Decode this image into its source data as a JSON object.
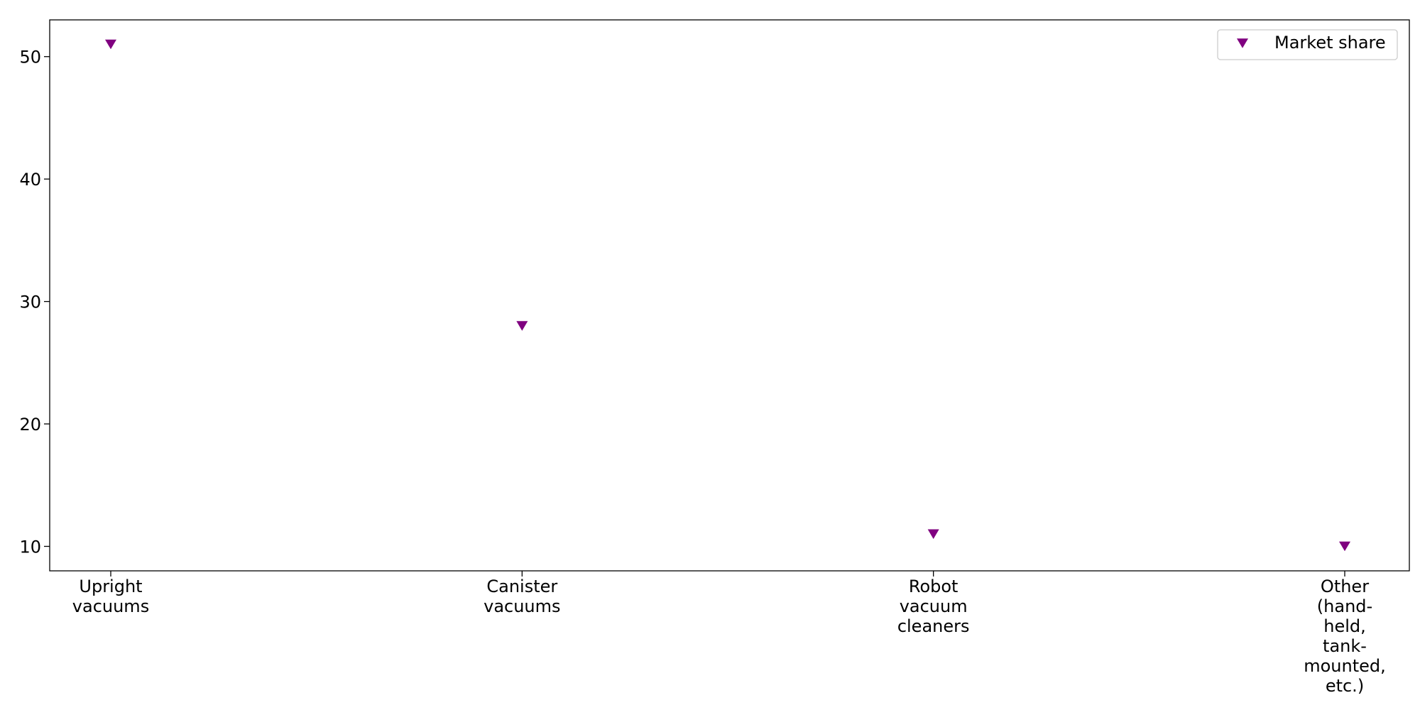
{
  "chart_data": {
    "type": "scatter",
    "categories": [
      [
        "Upright",
        "vacuums"
      ],
      [
        "Canister",
        "vacuums"
      ],
      [
        "Robot",
        "vacuum",
        "cleaners"
      ],
      [
        "Other",
        "(hand-",
        "held,",
        "tank-",
        "mounted,",
        "etc.)"
      ]
    ],
    "series": [
      {
        "name": "Market share",
        "values": [
          51,
          28,
          11,
          10
        ],
        "color": "#800080",
        "marker": "triangle-down"
      }
    ],
    "yticks": [
      10,
      20,
      30,
      40,
      50
    ],
    "ylim": [
      8,
      53
    ],
    "grid": false,
    "legend": "top-right"
  }
}
